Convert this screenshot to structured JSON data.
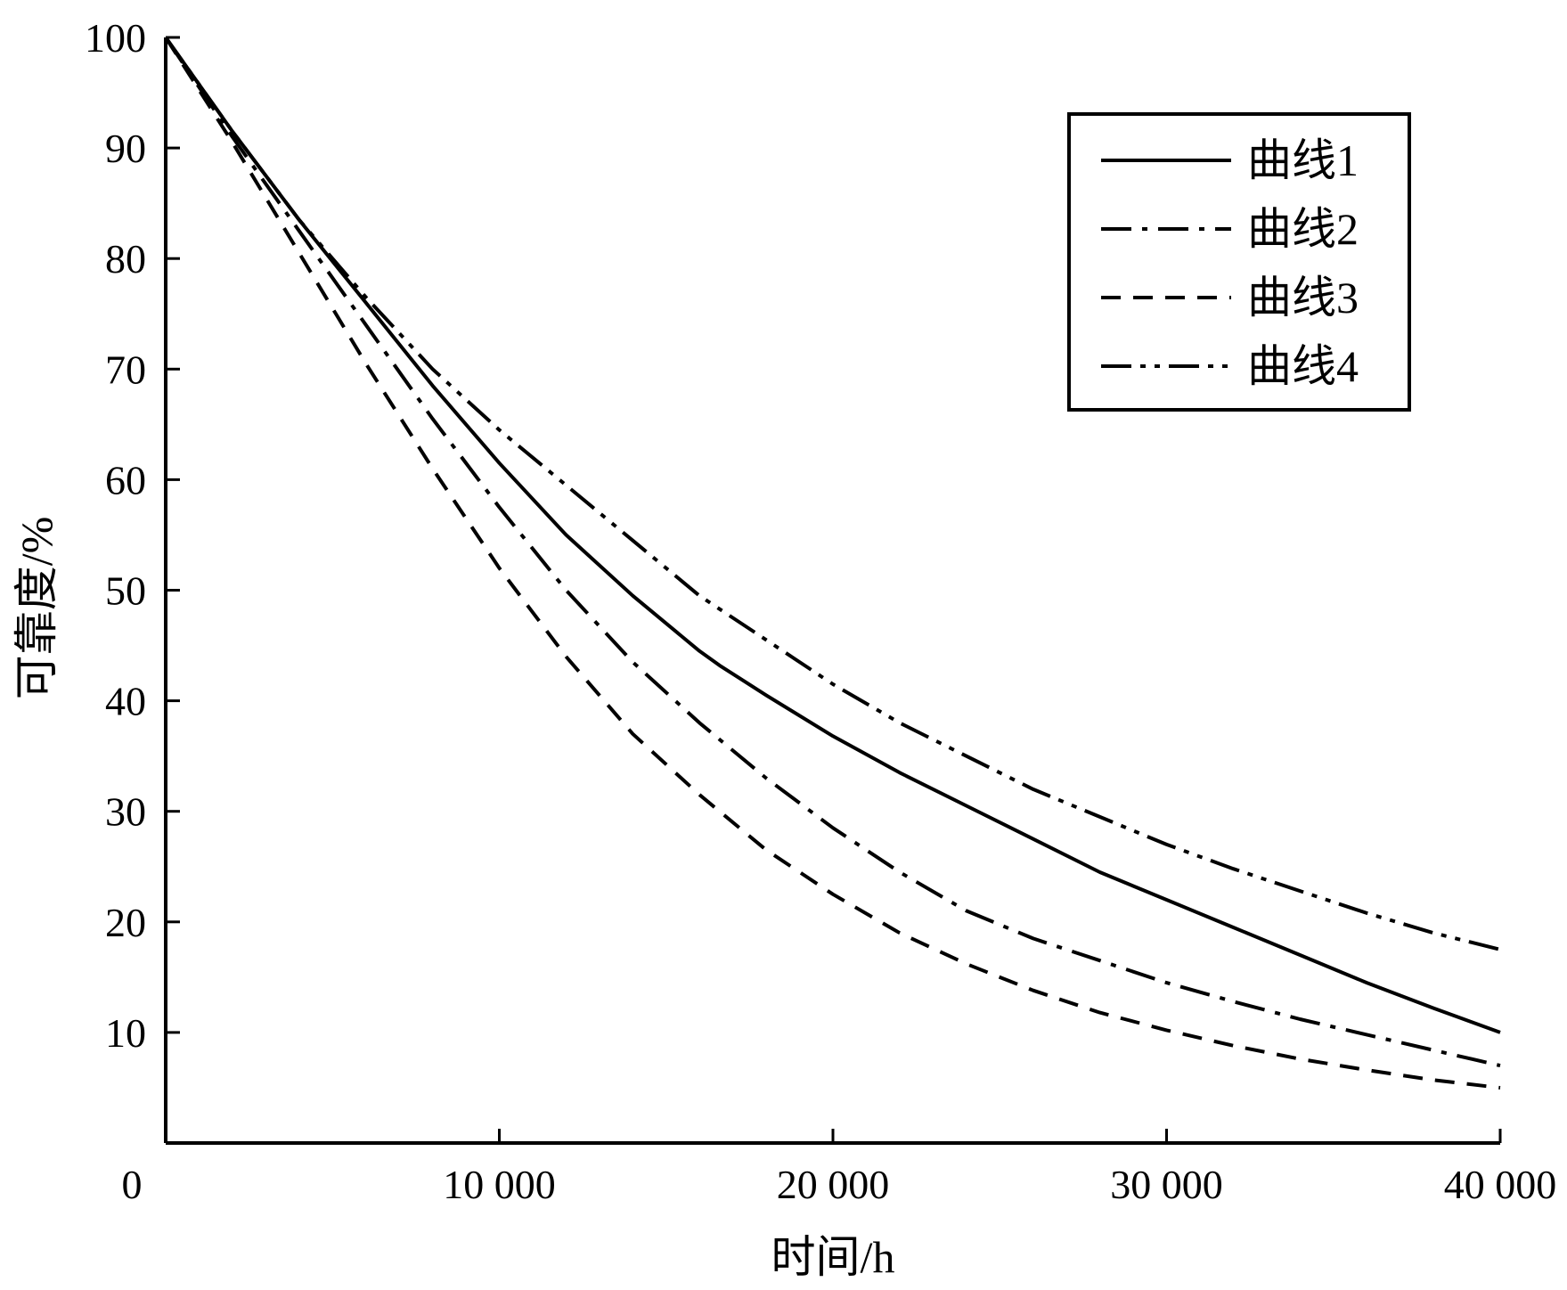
{
  "chart_data": {
    "type": "line",
    "xlabel": "时间/h",
    "ylabel": "可靠度/%",
    "xlim": [
      0,
      40000
    ],
    "ylim": [
      0,
      100
    ],
    "xticks": [
      0,
      10000,
      20000,
      30000,
      40000
    ],
    "xtick_labels": [
      "0",
      "10 000",
      "20 000",
      "30 000",
      "40 000"
    ],
    "yticks": [
      10,
      20,
      30,
      40,
      50,
      60,
      70,
      80,
      90,
      100
    ],
    "ytick_labels": [
      "10",
      "20",
      "30",
      "40",
      "50",
      "60",
      "70",
      "80",
      "90",
      "100"
    ],
    "grid": false,
    "legend_position": "top-right",
    "series": [
      {
        "name": "曲线1",
        "style": "solid",
        "x": [
          0,
          2000,
          4000,
          6000,
          8000,
          10000,
          12000,
          14000,
          16000,
          16600,
          18000,
          20000,
          22000,
          24000,
          26000,
          28000,
          30000,
          32000,
          34000,
          36000,
          38000,
          40000
        ],
        "y": [
          100,
          91.5,
          83.5,
          76,
          68.5,
          61.5,
          55,
          49.5,
          44.5,
          43.2,
          40.5,
          36.8,
          33.5,
          30.5,
          27.5,
          24.5,
          22,
          19.5,
          17,
          14.5,
          12.2,
          10
        ]
      },
      {
        "name": "曲线2",
        "style": "dashdot",
        "x": [
          0,
          2000,
          4000,
          6000,
          8000,
          10000,
          12000,
          14000,
          16000,
          18000,
          20000,
          22000,
          24000,
          26000,
          28000,
          30000,
          32000,
          34000,
          36000,
          38000,
          40000
        ],
        "y": [
          100,
          91,
          82.5,
          74,
          65.5,
          57.5,
          50,
          43.5,
          38,
          33,
          28.5,
          24.5,
          21,
          18.5,
          16.5,
          14.5,
          12.8,
          11.2,
          9.8,
          8.4,
          7
        ]
      },
      {
        "name": "曲线3",
        "style": "dashed",
        "x": [
          0,
          2000,
          4000,
          6000,
          8000,
          10000,
          12000,
          14000,
          16000,
          18000,
          20000,
          22000,
          24000,
          26000,
          28000,
          30000,
          32000,
          34000,
          36000,
          38000,
          40000
        ],
        "y": [
          100,
          90.5,
          80.5,
          70.5,
          61,
          52,
          44,
          37,
          31.5,
          26.5,
          22.5,
          19,
          16.2,
          13.8,
          11.8,
          10.2,
          8.8,
          7.6,
          6.6,
          5.7,
          5
        ]
      },
      {
        "name": "曲线4",
        "style": "dashdotdot",
        "x": [
          0,
          2000,
          4000,
          6000,
          8000,
          10000,
          12000,
          14000,
          16000,
          18000,
          20000,
          22000,
          24000,
          26000,
          28000,
          30000,
          32000,
          34000,
          36000,
          38000,
          40000
        ],
        "y": [
          100,
          91.5,
          83.5,
          76.5,
          70,
          64.5,
          59.5,
          54.5,
          49.5,
          45.5,
          41.5,
          38,
          35,
          32,
          29.5,
          27,
          24.8,
          22.8,
          20.8,
          19,
          17.5
        ]
      }
    ]
  }
}
